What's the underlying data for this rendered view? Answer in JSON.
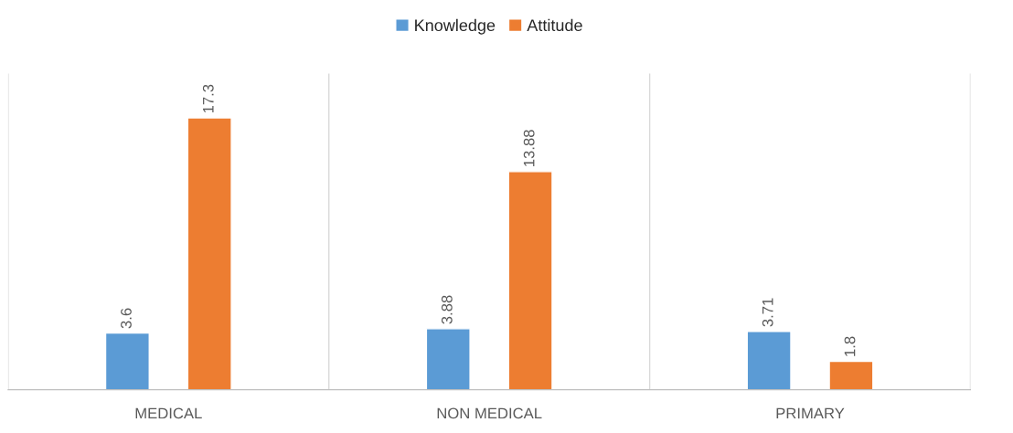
{
  "chart_data": {
    "type": "bar",
    "categories": [
      "MEDICAL",
      "NON MEDICAL",
      "PRIMARY"
    ],
    "series": [
      {
        "name": "Knowledge",
        "color": "#5b9bd5",
        "values": [
          3.6,
          3.88,
          3.71
        ]
      },
      {
        "name": "Attitude",
        "color": "#ed7d31",
        "values": [
          17.3,
          13.88,
          1.8
        ]
      }
    ],
    "data_labels": true,
    "legend": "top",
    "grid": false
  }
}
